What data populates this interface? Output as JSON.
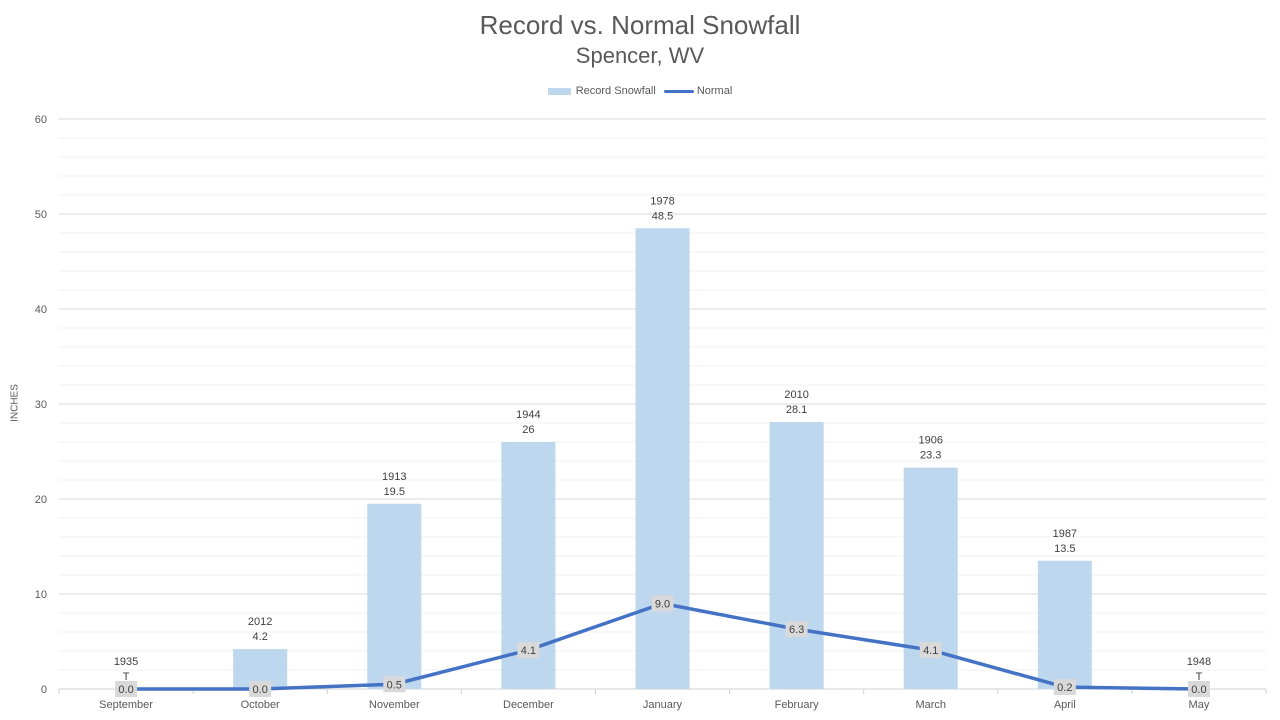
{
  "chart_data": {
    "type": "bar",
    "title": "Record vs. Normal Snowfall",
    "subtitle": "Spencer, WV",
    "ylabel": "INCHES",
    "ylim": [
      0,
      60
    ],
    "yticks": [
      0,
      10,
      20,
      30,
      40,
      50,
      60
    ],
    "legend_position": "top-center",
    "categories": [
      "September",
      "October",
      "November",
      "December",
      "January",
      "February",
      "March",
      "April",
      "May"
    ],
    "series": [
      {
        "name": "Record Snowfall",
        "type": "bar",
        "color": "#bdd7ee",
        "values": [
          0,
          4.2,
          19.5,
          26,
          48.5,
          28.1,
          23.3,
          13.5,
          0
        ],
        "labels": [
          "T",
          "4.2",
          "19.5",
          "26",
          "48.5",
          "28.1",
          "23.3",
          "13.5",
          "T"
        ],
        "years": [
          "1935",
          "2012",
          "1913",
          "1944",
          "1978",
          "2010",
          "1906",
          "1987",
          "1948"
        ]
      },
      {
        "name": "Normal",
        "type": "line",
        "color": "#4472c4",
        "values": [
          0.0,
          0.0,
          0.5,
          4.1,
          9.0,
          6.3,
          4.1,
          0.2,
          0.0
        ],
        "labels": [
          "0.0",
          "0.0",
          "0.5",
          "4.1",
          "9.0",
          "6.3",
          "4.1",
          "0.2",
          "0.0"
        ]
      }
    ]
  }
}
